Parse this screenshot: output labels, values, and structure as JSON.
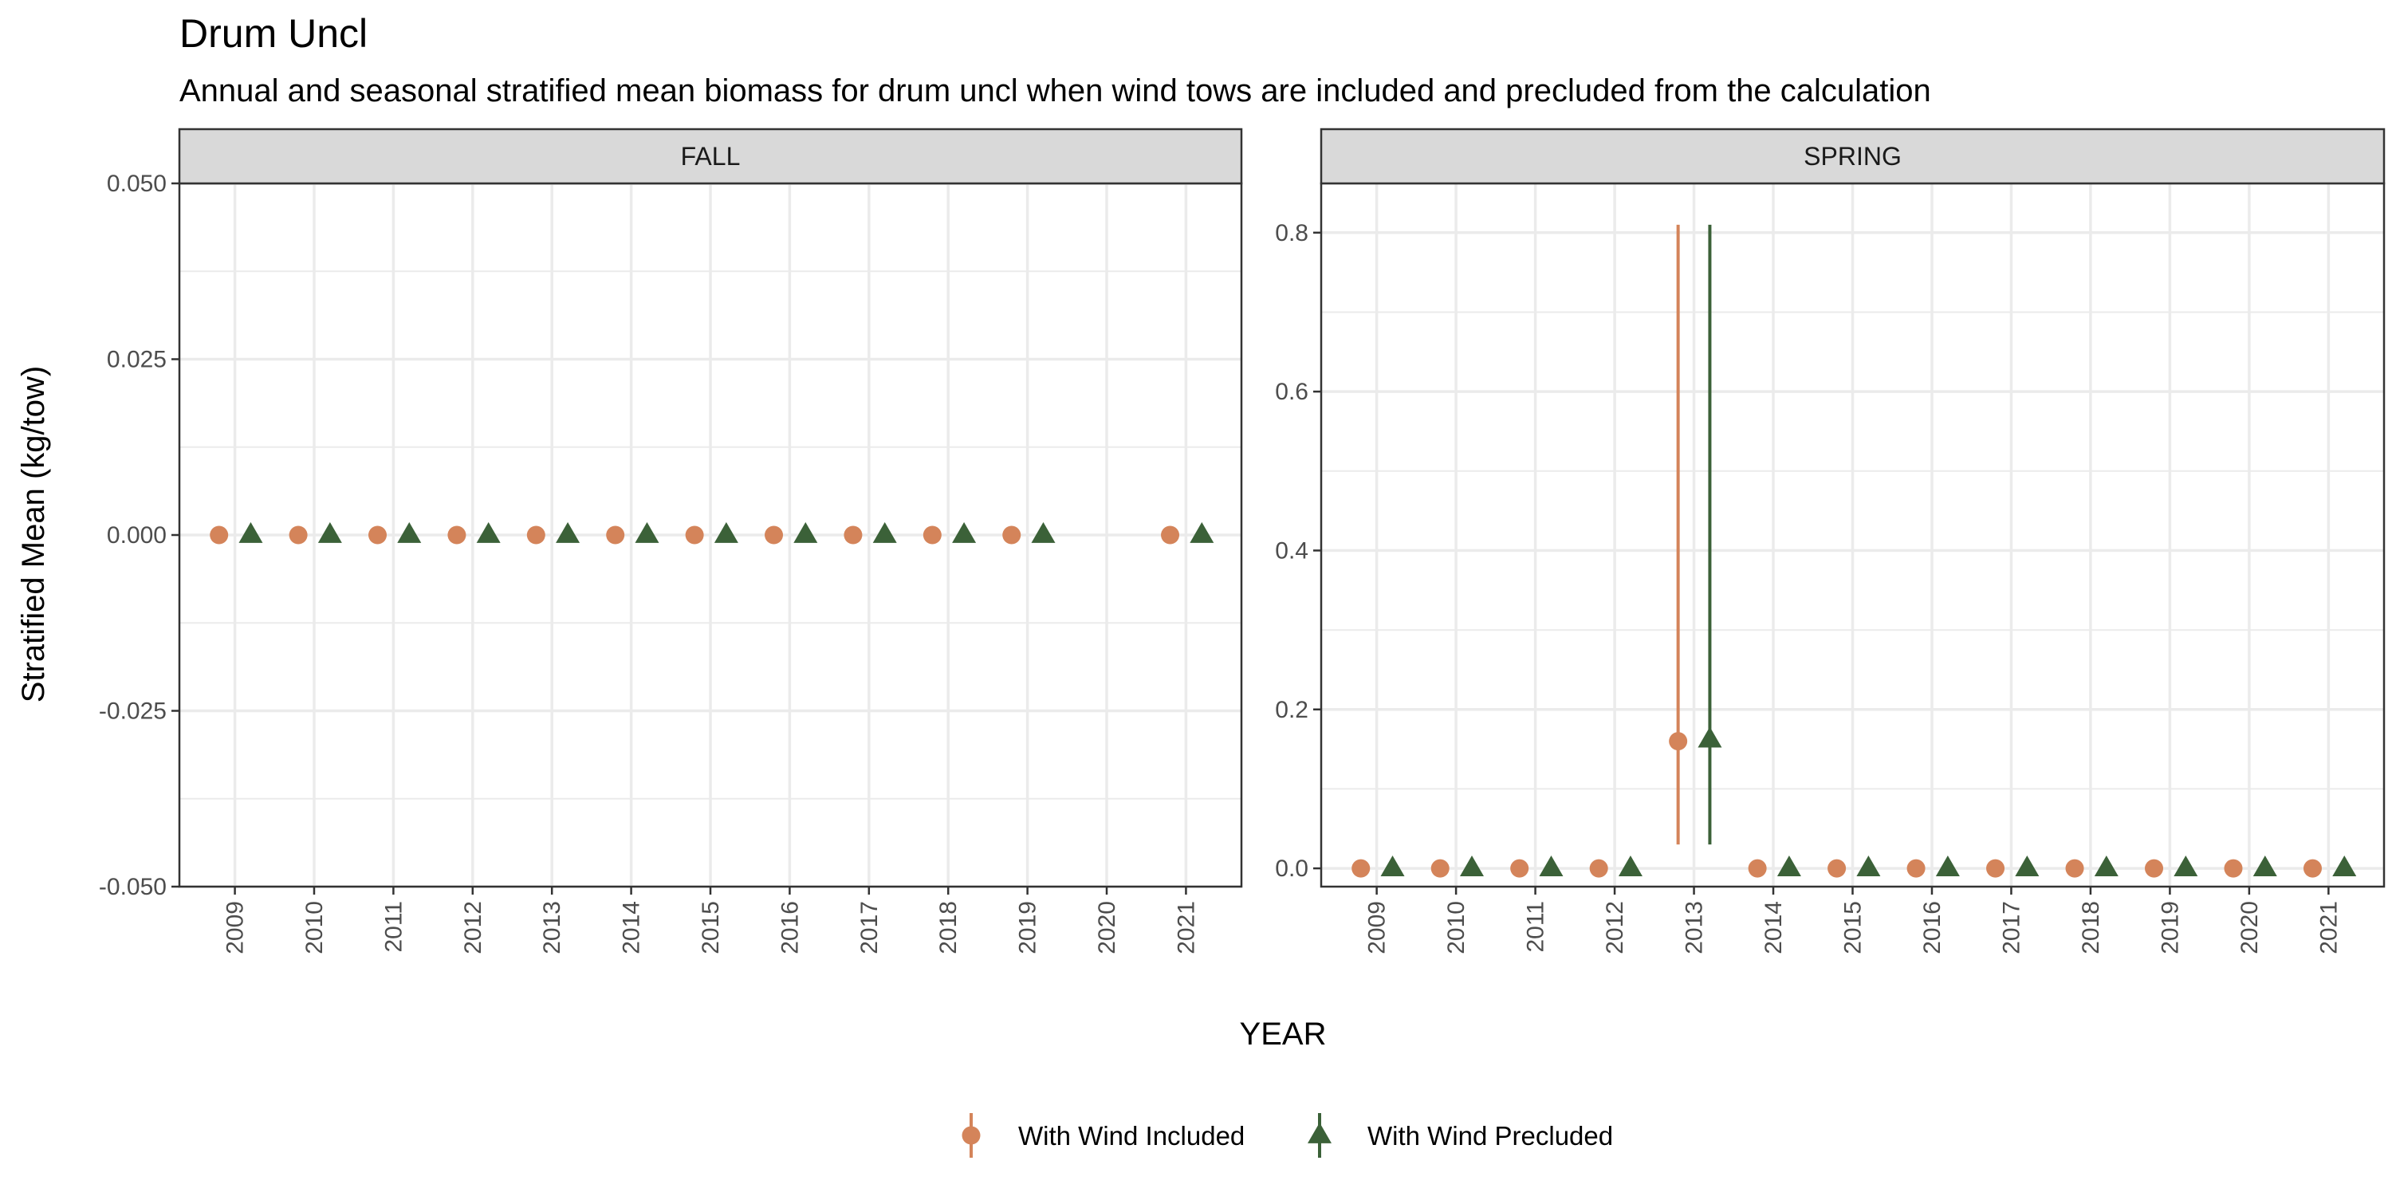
{
  "chart_data": {
    "type": "scatter",
    "title": "Drum Uncl",
    "subtitle": "Annual and seasonal stratified mean biomass for drum uncl when wind tows are included and precluded from the calculation",
    "xlabel": "YEAR",
    "ylabel": "Stratified Mean (kg/tow)",
    "grid": true,
    "legend_position": "bottom",
    "x_ticks": [
      "2009",
      "2010",
      "2011",
      "2012",
      "2013",
      "2014",
      "2015",
      "2016",
      "2017",
      "2018",
      "2019",
      "2020",
      "2021"
    ],
    "series_styles": [
      {
        "name": "With Wind Included",
        "color": "#D4845A",
        "marker": "circle"
      },
      {
        "name": "With Wind Precluded",
        "color": "#3B6138",
        "marker": "triangle"
      }
    ],
    "panels": [
      {
        "label": "FALL",
        "ylim": [
          -0.05,
          0.05
        ],
        "y_ticks": [
          "0.050",
          "0.025",
          "0.000",
          "-0.025",
          "-0.050"
        ],
        "y_tick_values": [
          0.05,
          0.025,
          0.0,
          -0.025,
          -0.05
        ],
        "series": [
          {
            "name": "With Wind Included",
            "x": [
              2009,
              2010,
              2011,
              2012,
              2013,
              2014,
              2015,
              2016,
              2017,
              2018,
              2019,
              2021
            ],
            "y": [
              0,
              0,
              0,
              0,
              0,
              0,
              0,
              0,
              0,
              0,
              0,
              0
            ],
            "ymin": [
              0,
              0,
              0,
              0,
              0,
              0,
              0,
              0,
              0,
              0,
              0,
              0
            ],
            "ymax": [
              0,
              0,
              0,
              0,
              0,
              0,
              0,
              0,
              0,
              0,
              0,
              0
            ]
          },
          {
            "name": "With Wind Precluded",
            "x": [
              2009,
              2010,
              2011,
              2012,
              2013,
              2014,
              2015,
              2016,
              2017,
              2018,
              2019,
              2021
            ],
            "y": [
              0,
              0,
              0,
              0,
              0,
              0,
              0,
              0,
              0,
              0,
              0,
              0
            ],
            "ymin": [
              0,
              0,
              0,
              0,
              0,
              0,
              0,
              0,
              0,
              0,
              0,
              0
            ],
            "ymax": [
              0,
              0,
              0,
              0,
              0,
              0,
              0,
              0,
              0,
              0,
              0,
              0
            ]
          }
        ]
      },
      {
        "label": "SPRING",
        "ylim": [
          -0.023,
          0.862
        ],
        "y_ticks": [
          "0.8",
          "0.6",
          "0.4",
          "0.2",
          "0.0"
        ],
        "y_tick_values": [
          0.8,
          0.6,
          0.4,
          0.2,
          0.0
        ],
        "series": [
          {
            "name": "With Wind Included",
            "x": [
              2009,
              2010,
              2011,
              2012,
              2013,
              2014,
              2015,
              2016,
              2017,
              2018,
              2019,
              2020,
              2021
            ],
            "y": [
              0,
              0,
              0,
              0,
              0.16,
              0,
              0,
              0,
              0,
              0,
              0,
              0,
              0
            ],
            "ymin": [
              0,
              0,
              0,
              0,
              0.03,
              0,
              0,
              0,
              0,
              0,
              0,
              0,
              0
            ],
            "ymax": [
              0,
              0,
              0,
              0,
              0.81,
              0,
              0,
              0,
              0,
              0,
              0,
              0,
              0
            ]
          },
          {
            "name": "With Wind Precluded",
            "x": [
              2009,
              2010,
              2011,
              2012,
              2013,
              2014,
              2015,
              2016,
              2017,
              2018,
              2019,
              2020,
              2021
            ],
            "y": [
              0,
              0,
              0,
              0,
              0.162,
              0,
              0,
              0,
              0,
              0,
              0,
              0,
              0
            ],
            "ymin": [
              0,
              0,
              0,
              0,
              0.03,
              0,
              0,
              0,
              0,
              0,
              0,
              0,
              0
            ],
            "ymax": [
              0,
              0,
              0,
              0,
              0.81,
              0,
              0,
              0,
              0,
              0,
              0,
              0,
              0
            ]
          }
        ]
      }
    ]
  }
}
